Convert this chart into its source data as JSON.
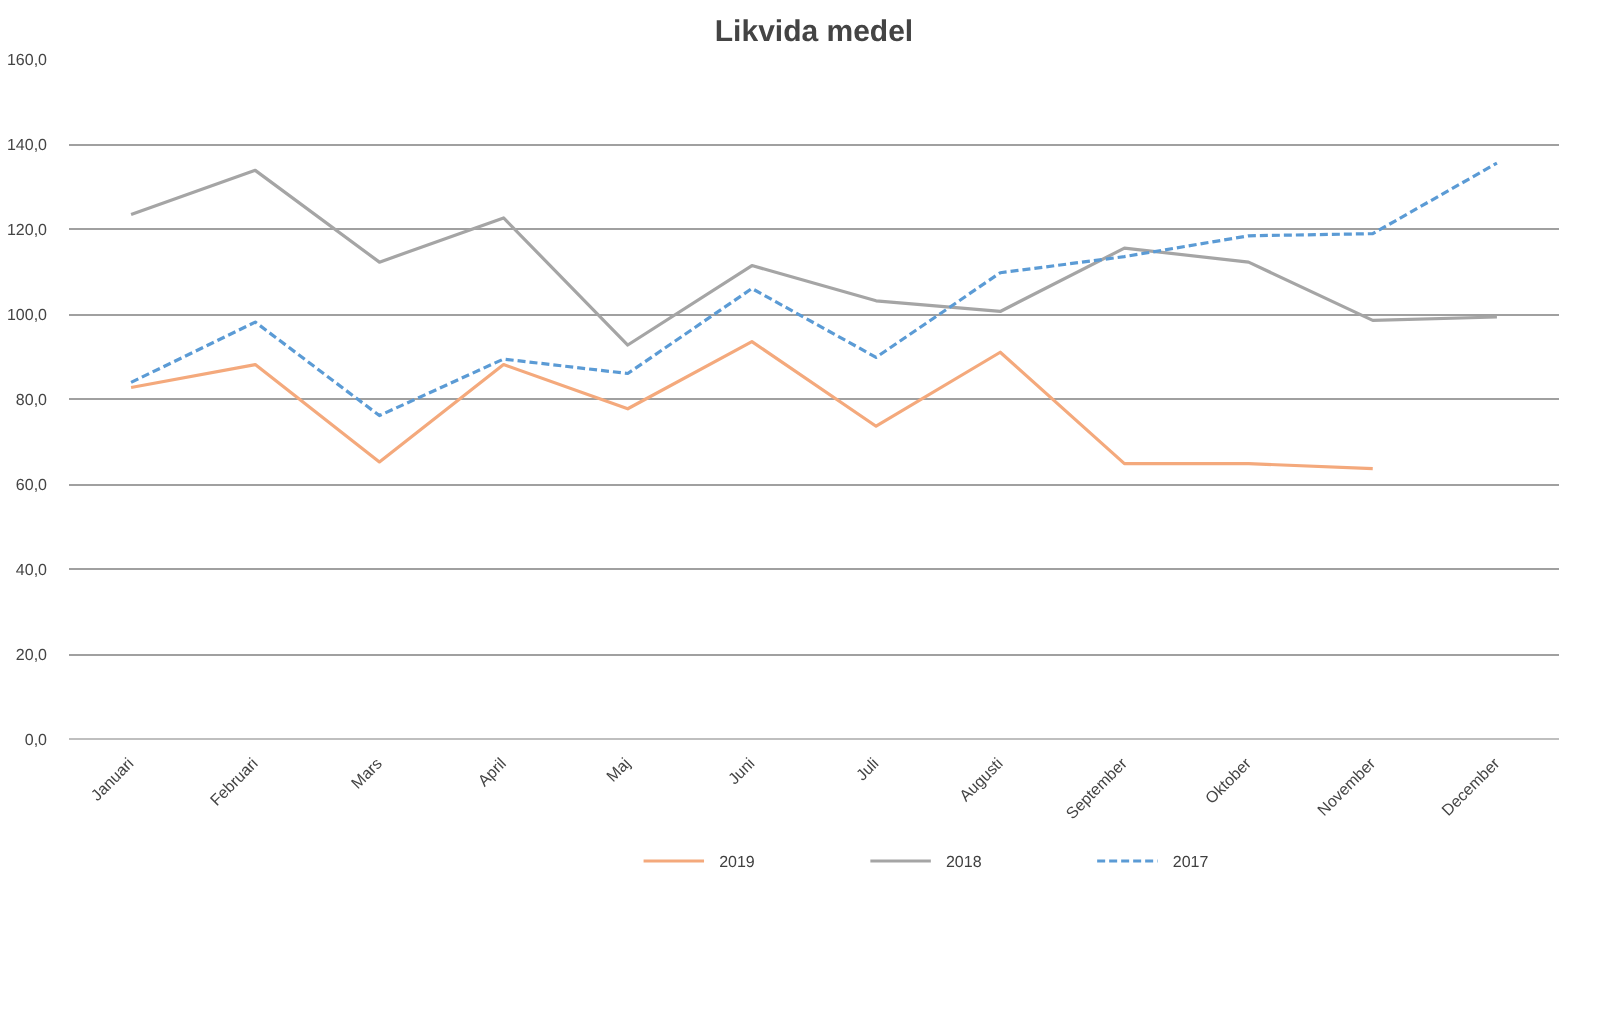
{
  "chart_data": {
    "type": "line",
    "title": "Likvida medel",
    "categories": [
      "Januari",
      "Februari",
      "Mars",
      "April",
      "Maj",
      "Juni",
      "Juli",
      "Augusti",
      "September",
      "Oktober",
      "November",
      "December"
    ],
    "series": [
      {
        "name": "2019",
        "color": "#f4a97c",
        "line_style": "solid",
        "values": [
          82.7,
          88.1,
          65.2,
          88.1,
          77.7,
          93.5,
          73.6,
          91.0,
          64.8,
          64.8,
          63.6,
          null
        ]
      },
      {
        "name": "2018",
        "color": "#a5a5a5",
        "line_style": "solid",
        "values": [
          123.4,
          133.8,
          112.2,
          122.6,
          92.7,
          111.4,
          103.1,
          100.6,
          115.5,
          112.2,
          98.5,
          99.3
        ]
      },
      {
        "name": "2017",
        "color": "#5b9bd5",
        "line_style": "dashed",
        "values": [
          83.9,
          98.1,
          76.1,
          89.4,
          86.0,
          106.0,
          89.8,
          109.7,
          113.5,
          118.4,
          118.9,
          135.5
        ]
      }
    ],
    "ylim": [
      0,
      160
    ],
    "yticks": [
      {
        "value": 0,
        "label": "0,0"
      },
      {
        "value": 20,
        "label": "20,0"
      },
      {
        "value": 40,
        "label": "40,0"
      },
      {
        "value": 60,
        "label": "60,0"
      },
      {
        "value": 80,
        "label": "80,0"
      },
      {
        "value": 100,
        "label": "100,0"
      },
      {
        "value": 120,
        "label": "120,0"
      },
      {
        "value": 140,
        "label": "140,0"
      },
      {
        "value": 160,
        "label": "160,0"
      }
    ],
    "grid": "y",
    "legend": "bottom",
    "marker": "none"
  }
}
